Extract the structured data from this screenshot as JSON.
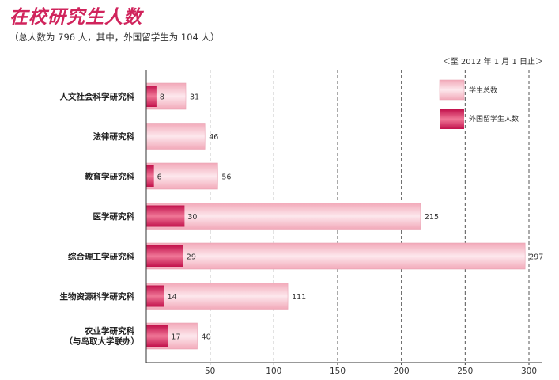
{
  "title": "在校研究生人数",
  "subtitle": "（总人数为 796 人，其中，外国留学生为 104 人）",
  "date_note": "＜至 2012 年 1 月 1 日止＞",
  "colors": {
    "total": "#f7c3ce",
    "foreign": "#d0245c"
  },
  "chart_data": {
    "type": "bar",
    "orientation": "horizontal",
    "categories": [
      [
        "人文社会科学研究科"
      ],
      [
        "法律研究科"
      ],
      [
        "教育学研究科"
      ],
      [
        "医学研究科"
      ],
      [
        "综合理工学研究科"
      ],
      [
        "生物资源科学研究科"
      ],
      [
        "农业学研究科",
        "（与鸟取大学联办）"
      ]
    ],
    "series": [
      {
        "name": "学生总数",
        "values": [
          31,
          46,
          56,
          215,
          297,
          111,
          40
        ]
      },
      {
        "name": "外国留学生人数",
        "values": [
          8,
          null,
          6,
          30,
          29,
          14,
          17
        ]
      }
    ],
    "xlim": [
      0,
      300
    ],
    "xticks": [
      50,
      100,
      150,
      200,
      250,
      300
    ],
    "grid": "dashed vertical",
    "legend": "top-right"
  }
}
